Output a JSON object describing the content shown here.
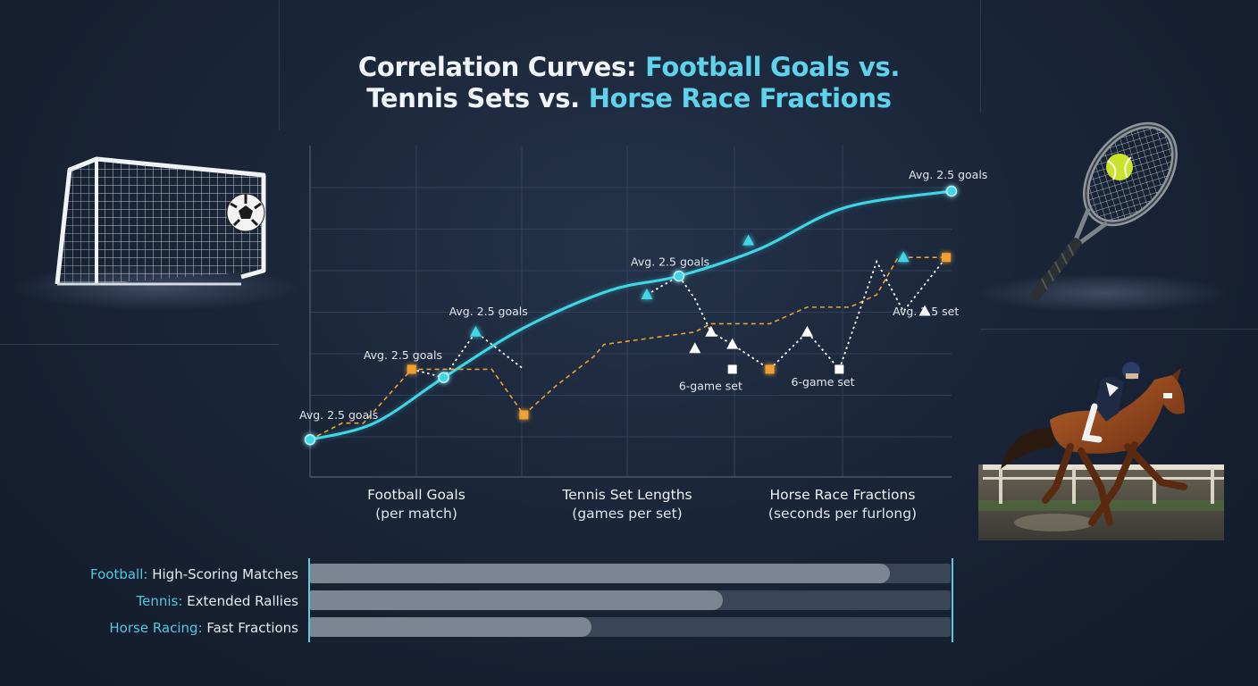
{
  "title": {
    "part1": "Correlation Curves: ",
    "part2": "Football Goals vs.",
    "part3": "Tennis Sets vs. ",
    "part4": "Horse Race Fractions"
  },
  "chart_data": {
    "type": "line",
    "title": "Correlation Curves: Football Goals vs. Tennis Sets vs. Horse Race Fractions",
    "xlabel": "",
    "ylabel": "",
    "grid": true,
    "categories": [
      {
        "name": "Football Goals",
        "sub": "(per match)"
      },
      {
        "name": "Tennis Set Lengths",
        "sub": "(games per set)"
      },
      {
        "name": "Horse Race Fractions",
        "sub": "(seconds per furlong)"
      }
    ],
    "xlim": [
      0,
      6
    ],
    "ylim": [
      0,
      8
    ],
    "series": [
      {
        "style": "solid-cyan-curve",
        "color": "#3fd6e6",
        "x": [
          0,
          1.25,
          3.45,
          6
        ],
        "y": [
          0.9,
          2.4,
          4.85,
          6.9
        ],
        "curve": [
          [
            0,
            0.9
          ],
          [
            0.6,
            1.3
          ],
          [
            1.25,
            2.4
          ],
          [
            2.0,
            3.6
          ],
          [
            2.8,
            4.5
          ],
          [
            3.45,
            4.85
          ],
          [
            4.2,
            5.5
          ],
          [
            5.0,
            6.5
          ],
          [
            6,
            6.9
          ]
        ]
      },
      {
        "style": "dashed-orange-steps",
        "color": "#f0a030",
        "marker": "square",
        "x": [
          0,
          0.3,
          0.5,
          0.95,
          1.7,
          2.0,
          2.3,
          2.65,
          2.75,
          3.6,
          3.75,
          4.3,
          4.65,
          5.05,
          5.3,
          5.5,
          5.95
        ],
        "y": [
          0.9,
          1.3,
          1.3,
          2.6,
          2.6,
          1.5,
          2.2,
          2.9,
          3.2,
          3.5,
          3.7,
          3.7,
          4.1,
          4.1,
          4.4,
          5.3,
          5.3
        ],
        "markers": [
          [
            0.95,
            2.6
          ],
          [
            2.0,
            1.5
          ],
          [
            4.3,
            2.6
          ],
          [
            5.95,
            5.3
          ]
        ]
      },
      {
        "style": "dotted-white-zigzag",
        "color": "#ffffff",
        "x": [
          0.95,
          1.25,
          1.55,
          2.0
        ],
        "y": [
          2.6,
          2.4,
          3.5,
          2.6
        ]
      },
      {
        "style": "dotted-white-zigzag",
        "color": "#ffffff",
        "x": [
          3.15,
          3.45,
          3.6,
          3.75,
          3.95,
          4.3,
          4.65,
          4.95,
          5.3,
          5.55,
          5.95
        ],
        "y": [
          4.4,
          4.85,
          4.3,
          3.5,
          3.2,
          2.6,
          3.5,
          2.6,
          5.2,
          4.0,
          5.3
        ]
      }
    ],
    "triangle_markers": [
      {
        "x": 1.55,
        "y": 3.5,
        "color": "#3fd6e6"
      },
      {
        "x": 3.15,
        "y": 4.4,
        "color": "#3fd6e6"
      },
      {
        "x": 3.75,
        "y": 3.5,
        "color": "#ffffff"
      },
      {
        "x": 3.6,
        "y": 3.1,
        "color": "#ffffff"
      },
      {
        "x": 3.95,
        "y": 3.2,
        "color": "#ffffff"
      },
      {
        "x": 4.1,
        "y": 5.7,
        "color": "#3fd6e6"
      },
      {
        "x": 4.65,
        "y": 3.5,
        "color": "#ffffff"
      },
      {
        "x": 5.55,
        "y": 5.3,
        "color": "#3fd6e6"
      },
      {
        "x": 5.75,
        "y": 4.0,
        "color": "#ffffff"
      }
    ],
    "point_markers": [
      {
        "x": 0,
        "y": 0.9
      },
      {
        "x": 1.25,
        "y": 2.4
      },
      {
        "x": 3.45,
        "y": 4.85
      },
      {
        "x": 6,
        "y": 6.9
      }
    ],
    "square_markers_white": [
      {
        "x": 3.95,
        "y": 2.6
      },
      {
        "x": 4.95,
        "y": 2.6
      }
    ],
    "annotations": [
      {
        "text": "Avg. 2.5 goals",
        "x": -0.1,
        "y": 1.4
      },
      {
        "text": "Avg. 2.5 goals",
        "x": 0.5,
        "y": 2.85
      },
      {
        "text": "Avg. 2.5 goals",
        "x": 1.3,
        "y": 3.9
      },
      {
        "text": "Avg. 2.5 goals",
        "x": 3.0,
        "y": 5.1
      },
      {
        "text": "Avg. 2.5 goals",
        "x": 5.6,
        "y": 7.2
      },
      {
        "text": "Avg. 2.5 set",
        "x": 5.45,
        "y": 3.9
      },
      {
        "text": "6-game set",
        "x": 3.45,
        "y": 2.1
      },
      {
        "text": "6-game set",
        "x": 4.5,
        "y": 2.2
      }
    ]
  },
  "bars": [
    {
      "sport": "Football:",
      "desc": " High-Scoring Matches",
      "value": 0.905
    },
    {
      "sport": "Tennis:",
      "desc": " Extended Rallies",
      "value": 0.645
    },
    {
      "sport": "Horse Racing:",
      "desc": " Fast Fractions",
      "value": 0.44
    }
  ],
  "illustrations": {
    "football": "soccer-goal-and-ball",
    "tennis": "tennis-racket-and-ball",
    "horse": "racehorse-with-jockey"
  }
}
